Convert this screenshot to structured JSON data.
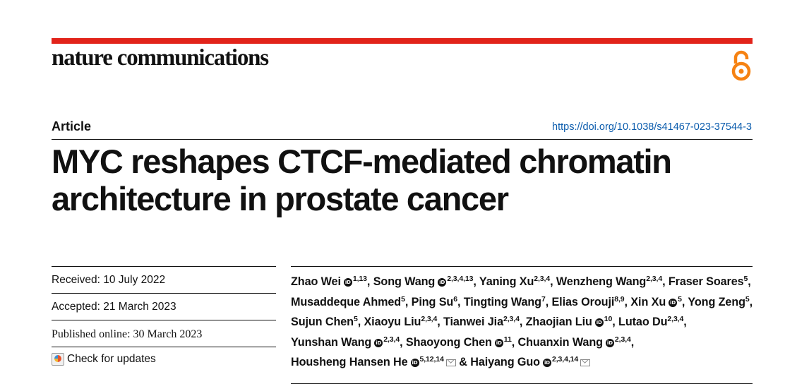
{
  "header": {
    "journal_name": "nature communications",
    "open_access_icon": "open-access-lock-icon",
    "accent_color": "#e2231a",
    "oa_color": "#f68212"
  },
  "article": {
    "type": "Article",
    "doi": "https://doi.org/10.1038/s41467-023-37544-3",
    "title": "MYC reshapes CTCF-mediated chromatin architecture in prostate cancer"
  },
  "dates": {
    "received": "Received: 10 July 2022",
    "accepted": "Accepted: 21 March 2023",
    "published": "Published online: 30 March 2023",
    "check_updates": "Check for updates"
  },
  "authors": [
    {
      "name": "Zhao Wei",
      "orcid": true,
      "aff": "1,13",
      "sep": ", "
    },
    {
      "name": "Song Wang",
      "orcid": true,
      "aff": "2,3,4,13",
      "sep": ", "
    },
    {
      "name": "Yaning Xu",
      "orcid": false,
      "aff": "2,3,4",
      "sep": ", "
    },
    {
      "name": "Wenzheng Wang",
      "orcid": false,
      "aff": "2,3,4",
      "sep": ", "
    },
    {
      "name": "Fraser Soares",
      "orcid": false,
      "aff": "5",
      "sep": ", "
    },
    {
      "name": "Musaddeque Ahmed",
      "orcid": false,
      "aff": "5",
      "sep": ", "
    },
    {
      "name": "Ping Su",
      "orcid": false,
      "aff": "6",
      "sep": ", "
    },
    {
      "name": "Tingting Wang",
      "orcid": false,
      "aff": "7",
      "sep": ", "
    },
    {
      "name": "Elias Orouji",
      "orcid": false,
      "aff": "8,9",
      "sep": ", "
    },
    {
      "name": "Xin Xu",
      "orcid": true,
      "aff": "5",
      "sep": ", "
    },
    {
      "name": "Yong Zeng",
      "orcid": false,
      "aff": "5",
      "sep": ", "
    },
    {
      "name": "Sujun Chen",
      "orcid": false,
      "aff": "5",
      "sep": ", "
    },
    {
      "name": "Xiaoyu Liu",
      "orcid": false,
      "aff": "2,3,4",
      "sep": ", "
    },
    {
      "name": "Tianwei Jia",
      "orcid": false,
      "aff": "2,3,4",
      "sep": ", "
    },
    {
      "name": "Zhaojian Liu",
      "orcid": true,
      "aff": "10",
      "sep": ", "
    },
    {
      "name": "Lutao Du",
      "orcid": false,
      "aff": "2,3,4",
      "sep": ", "
    },
    {
      "name": "Yunshan Wang",
      "orcid": true,
      "aff": "2,3,4",
      "sep": ", "
    },
    {
      "name": "Shaoyong Chen",
      "orcid": true,
      "aff": "11",
      "sep": ", "
    },
    {
      "name": "Chuanxin Wang",
      "orcid": true,
      "aff": "2,3,4",
      "sep": ", "
    },
    {
      "name": "Housheng Hansen He",
      "orcid": true,
      "aff": "5,12,14",
      "mail": true,
      "sep": " & "
    },
    {
      "name": "Haiyang Guo",
      "orcid": true,
      "aff": "2,3,4,14",
      "mail": true,
      "sep": ""
    }
  ]
}
